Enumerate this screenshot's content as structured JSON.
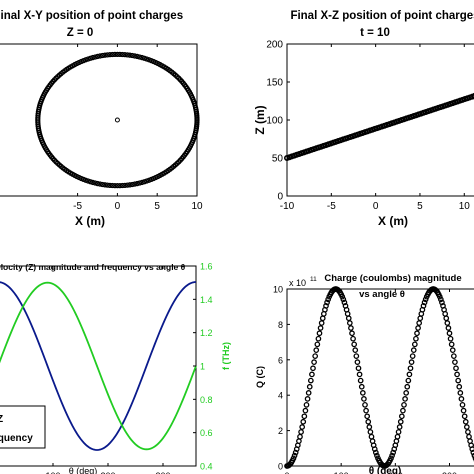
{
  "chart_data": [
    {
      "id": "xy",
      "type": "scatter",
      "title": "Original X-Y position of point charges",
      "subtitle": "Z = 0",
      "xlabel": "X (m)",
      "ylabel": "",
      "xlim": [
        -15,
        10
      ],
      "ylim": [
        -11,
        11
      ],
      "x_ticks": [
        "-5",
        "0",
        "5",
        "10"
      ],
      "x_tick_values": [
        -5,
        0,
        5,
        10
      ],
      "ellipse": {
        "center_x": 0,
        "center_y": 0,
        "radius_x": 10,
        "radius_y": 9.5
      },
      "center_point": {
        "x": 0,
        "y": 0
      },
      "marker": "circle",
      "color": "#000000"
    },
    {
      "id": "xz",
      "type": "line",
      "title": "Final X-Z position of point charges",
      "subtitle": "t = 10",
      "xlabel": "X (m)",
      "ylabel": "Z (m)",
      "xlim": [
        -10,
        12
      ],
      "ylim": [
        0,
        200
      ],
      "x_ticks": [
        "-10",
        "-5",
        "0",
        "5",
        "10"
      ],
      "x_tick_values": [
        -10,
        -5,
        0,
        5,
        10
      ],
      "y_ticks": [
        "0",
        "50",
        "100",
        "150",
        "200"
      ],
      "y_tick_values": [
        0,
        50,
        100,
        150,
        200
      ],
      "x": [
        -10,
        12
      ],
      "y": [
        50,
        135
      ],
      "color": "#000000"
    },
    {
      "id": "vel",
      "type": "line",
      "title": "Velocity (Z) magnitude and frequency vs angle θ",
      "xlabel": "θ (deg)",
      "ylabel": "",
      "y2label": "f (THz)",
      "xlim": [
        0,
        360
      ],
      "x_ticks": [
        "0",
        "100",
        "200",
        "300"
      ],
      "x_tick_values": [
        0,
        100,
        200,
        300
      ],
      "y2lim": [
        0.4,
        1.6
      ],
      "y2_ticks": [
        "0.4",
        "0.6",
        "0.8",
        "1",
        "1.2",
        "1.4",
        "1.6"
      ],
      "y2_tick_values": [
        0.4,
        0.6,
        0.8,
        1.0,
        1.2,
        1.4,
        1.6
      ],
      "series": [
        {
          "name": "Z",
          "color": "#0a1a8c",
          "axis": "left",
          "formula": "cos",
          "norm_min": 0.08,
          "norm_max": 0.92,
          "theta_start": -90
        },
        {
          "name": "frequency",
          "color": "#22cc22",
          "axis": "right",
          "f_center": 1.0,
          "f_amplitude": 0.5,
          "phase_peak_deg": 90
        }
      ],
      "legend": [
        "Z",
        "frequency"
      ],
      "legend_position": "bottom-left"
    },
    {
      "id": "charge",
      "type": "scatter",
      "title": "Charge (coulombs) magnitude",
      "subtitle": "vs angle θ",
      "xlabel": "θ (deg)",
      "ylabel": "Q (C)",
      "exponent_label": "x 10",
      "exponent_value": "11",
      "xlim": [
        0,
        360
      ],
      "ylim": [
        0,
        10
      ],
      "x_ticks": [
        "0",
        "100",
        "200",
        "300"
      ],
      "x_tick_values": [
        0,
        100,
        200,
        300
      ],
      "y_ticks": [
        "0",
        "2",
        "4",
        "6",
        "8",
        "10"
      ],
      "y_tick_values": [
        0,
        2,
        4,
        6,
        8,
        10
      ],
      "peak": 10,
      "formula": "peak*sin^2(theta)",
      "marker": "circle",
      "color": "#000000"
    }
  ]
}
